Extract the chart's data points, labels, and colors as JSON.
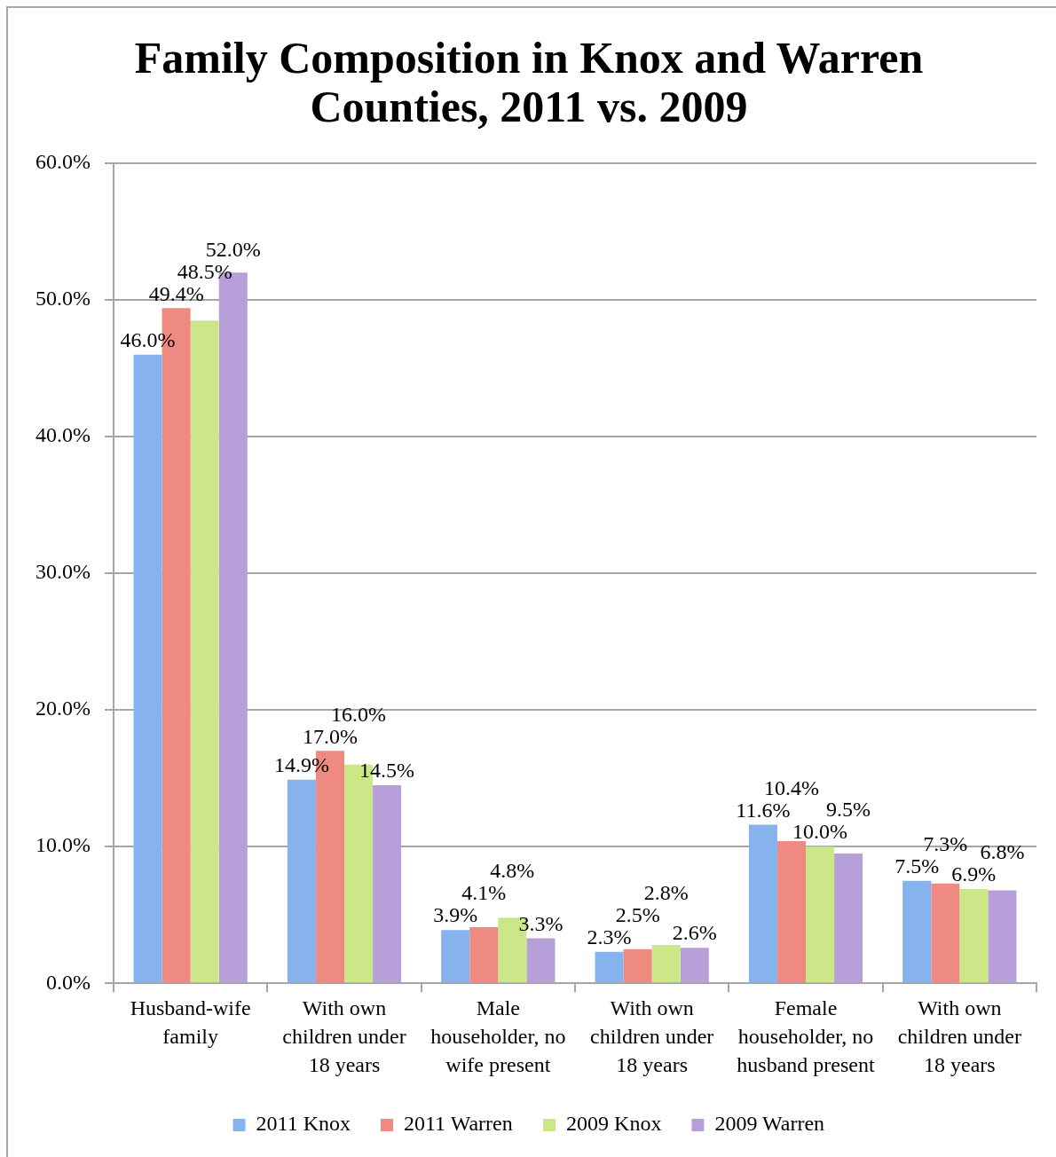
{
  "chart_data": {
    "type": "bar",
    "title": "Family Composition in Knox and Warren Counties, 2011 vs. 2009",
    "categories": [
      "Husband-wife family",
      "With own children under 18 years",
      "Male householder, no wife present",
      "With own children under 18 years",
      "Female householder, no husband present",
      "With own children under 18 years"
    ],
    "series": [
      {
        "name": "2011 Knox",
        "color": "#86b3ee",
        "values": [
          46.0,
          14.9,
          3.9,
          2.3,
          11.6,
          7.5
        ],
        "value_labels": [
          "46.0%",
          "14.9%",
          "3.9%",
          "2.3%",
          "11.6%",
          "7.5%"
        ]
      },
      {
        "name": "2011 Warren",
        "color": "#ef8a82",
        "values": [
          49.4,
          17.0,
          4.1,
          2.5,
          10.4,
          7.3
        ],
        "value_labels": [
          "49.4%",
          "17.0%",
          "4.1%",
          "2.5%",
          "10.4%",
          "7.3%"
        ]
      },
      {
        "name": "2009 Knox",
        "color": "#cce788",
        "values": [
          48.5,
          16.0,
          4.8,
          2.8,
          10.0,
          6.9
        ],
        "value_labels": [
          "48.5%",
          "16.0%",
          "4.8%",
          "2.8%",
          "10.0%",
          "6.9%"
        ]
      },
      {
        "name": "2009 Warren",
        "color": "#b7a0da",
        "values": [
          52.0,
          14.5,
          3.3,
          2.6,
          9.5,
          6.8
        ],
        "value_labels": [
          "52.0%",
          "14.5%",
          "3.3%",
          "2.6%",
          "9.5%",
          "6.8%"
        ]
      }
    ],
    "ylim": [
      0,
      60
    ],
    "yticks": [
      {
        "value": 0,
        "label": "0.0%"
      },
      {
        "value": 10,
        "label": "10.0%"
      },
      {
        "value": 20,
        "label": "20.0%"
      },
      {
        "value": 30,
        "label": "30.0%"
      },
      {
        "value": 40,
        "label": "40.0%"
      },
      {
        "value": 50,
        "label": "50.0%"
      },
      {
        "value": 60,
        "label": "60.0%"
      }
    ],
    "grid": "y",
    "legend": "bottom"
  }
}
